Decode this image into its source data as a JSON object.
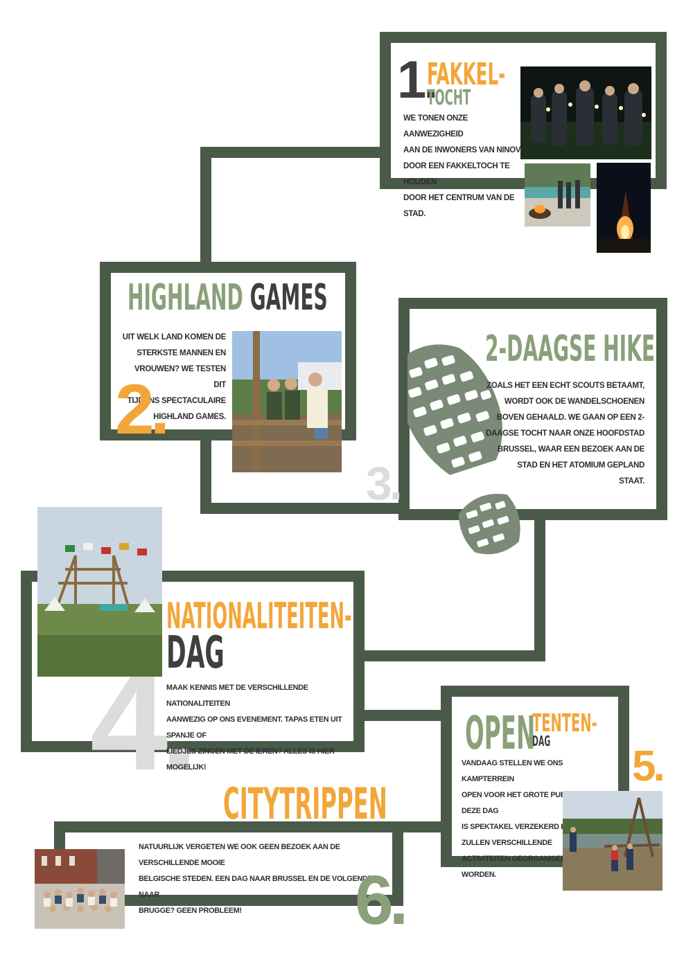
{
  "colors": {
    "frame": "#4a5a48",
    "orange": "#f2a63a",
    "green": "#8aa07a",
    "dark": "#3f403e",
    "grey_number": "#dcdcdc"
  },
  "sections": [
    {
      "number": "1.",
      "title_line1": "FAKKEL-",
      "title_line2": "TOCHT",
      "text_lines": [
        "WE TONEN ONZE AANWEZIGHEID",
        "AAN DE INWONERS VAN NINOVE",
        "DOOR EEN FAKKELTOCH TE HOUDEN",
        "DOOR HET CENTRUM VAN DE STAD."
      ]
    },
    {
      "number": "2.",
      "title_part1": "HIGHLAND",
      "title_part2": "GAMES",
      "text_lines": [
        "UIT WELK LAND KOMEN DE",
        "STERKSTE MANNEN EN",
        "VROUWEN? WE TESTEN DIT",
        "TIJDENS SPECTACULAIRE",
        "HIGHLAND GAMES."
      ]
    },
    {
      "number": "3.",
      "title": "2-DAAGSE HIKE",
      "text_lines": [
        "ZOALS HET EEN ECHT SCOUTS BETAAMT,",
        "WORDT OOK DE WANDELSCHOENEN",
        "BOVEN GEHAALD. WE GAAN OP EEN 2-",
        "DAAGSE TOCHT NAAR ONZE HOOFDSTAD",
        "BRUSSEL, WAAR EEN BEZOEK AAN DE",
        "STAD EN HET ATOMIUM GEPLAND",
        "STAAT."
      ]
    },
    {
      "number": "4.",
      "title_line1": "NATIONALITEITEN-",
      "title_line2": "DAG",
      "text_lines": [
        "MAAK KENNIS MET DE VERSCHILLENDE NATIONALITEITEN",
        "AANWEZIG OP ONS EVENEMENT. TAPAS ETEN UIT SPANJE OF",
        "LIEDJES ZINGEN MET DE IEREN? ALLES IS HIER MOGELIJK!"
      ]
    },
    {
      "number": "5.",
      "title_part1": "OPEN",
      "title_part2": "TENTEN-",
      "title_part3": "DAG",
      "text_lines": [
        "VANDAAG STELLEN WE ONS KAMPTERREIN",
        "OPEN VOOR HET GROTE PUBLIEK. OP DEZE DAG",
        "IS SPEKTAKEL VERZEKERD EN",
        "ZULLEN VERSCHILLENDE",
        "ACTIVITEITEN GEORGANISEERD",
        "WORDEN."
      ]
    },
    {
      "number": "6.",
      "title": "CITYTRIPPEN",
      "text_lines": [
        "NATUURLIJK VERGETEN WE OOK GEEN BEZOEK AAN DE VERSCHILLENDE MOOIE",
        "BELGISCHE STEDEN. EEN DAG NAAR BRUSSEL EN DE VOLGENDE NAAR",
        "BRUGGE? GEEN PROBLEEM!"
      ]
    }
  ],
  "icons": {
    "hike": "boot-print-icon"
  }
}
